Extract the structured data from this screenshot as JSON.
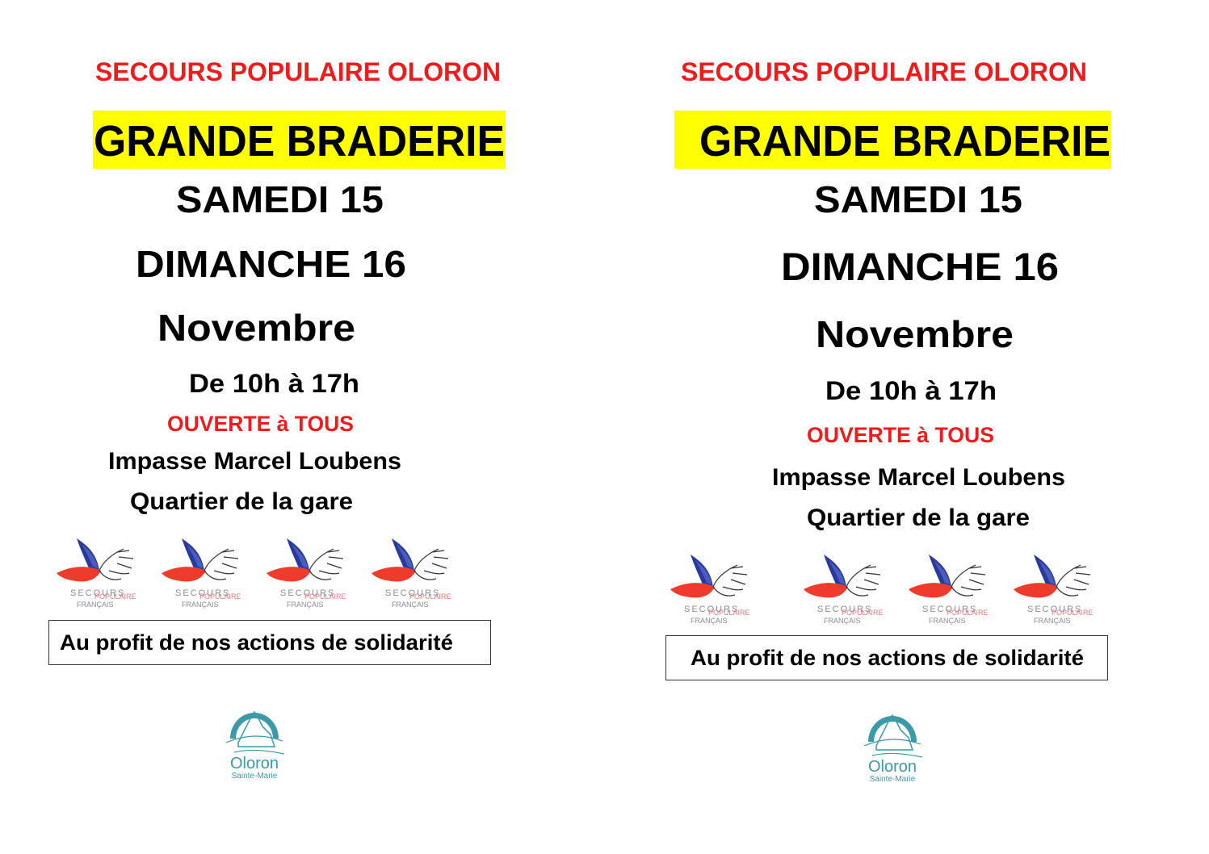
{
  "flyers": [
    {
      "organization": "SECOURS POPULAIRE OLORON",
      "headline": "GRANDE BRADERIE",
      "day1": "SAMEDI 15",
      "day2": "DIMANCHE 16",
      "month": "Novembre",
      "hours": "De 10h à 17h",
      "open_to": "OUVERTE à TOUS",
      "address_line1": "Impasse Marcel Loubens",
      "address_line2": "Quartier de la gare",
      "purpose": "Au profit de nos actions de solidarité"
    },
    {
      "organization": "SECOURS POPULAIRE OLORON",
      "headline": "GRANDE BRADERIE",
      "day1": "SAMEDI 15",
      "day2": "DIMANCHE 16",
      "month": "Novembre",
      "hours": "De 10h à 17h",
      "open_to": "OUVERTE à TOUS",
      "address_line1": "Impasse Marcel Loubens",
      "address_line2": "Quartier de la gare",
      "purpose": "Au profit de nos actions de solidarité"
    }
  ],
  "logos": {
    "secours_populaire": "SECOURS POPULAIRE FRANÇAIS",
    "city": "Oloron Sainte-Marie"
  },
  "colors": {
    "red": "#ee1c1c",
    "highlight": "#ffff00",
    "wing_blue": "#2b3a9a",
    "wing_red": "#ef3b2c",
    "city_teal": "#3a9aa5"
  }
}
